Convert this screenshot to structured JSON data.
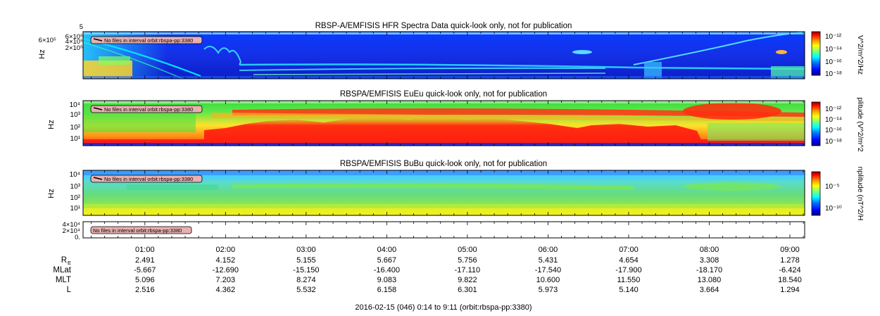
{
  "colors": {
    "spectrum": [
      "#00007f",
      "#0000ff",
      "#007fff",
      "#00ffff",
      "#7fff7f",
      "#ffff00",
      "#ff7f00",
      "#ff0000",
      "#7f0000"
    ],
    "warning_box": "#e8b0b0"
  },
  "panels": [
    {
      "title": "RBSP-A/EMFISIS  HFR Spectra Data quick-look only, not for publication",
      "ylabel": "Hz",
      "yticks": [
        "6×10⁵",
        "4×10⁵",
        "2×10⁵"
      ],
      "top_tick": "5",
      "warning": "No files in interval orbit:rbspa-pp:3380",
      "colorbar_label": "V^2/m^2/Hz",
      "colorbar_ticks": [
        "10⁻¹²",
        "10⁻¹⁴",
        "10⁻¹⁶",
        "10⁻¹⁸"
      ]
    },
    {
      "title": "RBSPA/EMFISIS  EuEu quick-look only, not for publication",
      "ylabel": "Hz",
      "yticks": [
        "10⁴",
        "10³",
        "10²",
        "10¹"
      ],
      "warning": "No files in interval orbit:rbspa-pp:3380",
      "colorbar_label": "plitude (V^2/m^2",
      "colorbar_ticks": [
        "10⁻¹²",
        "10⁻¹⁴",
        "10⁻¹⁶",
        "10⁻¹⁸"
      ]
    },
    {
      "title": "RBSPA/EMFISIS  BuBu quick-look only, not for publication",
      "ylabel": "Hz",
      "yticks": [
        "10⁴",
        "10³",
        "10²",
        "10¹"
      ],
      "warning": "No files in interval orbit:rbspa-pp:3380",
      "colorbar_label": "nplitude (nT^2/H",
      "colorbar_ticks": [
        "10⁻⁵",
        "10⁻¹⁰"
      ]
    },
    {
      "yticks": [
        "4×10⁴",
        "2×10⁴",
        "0."
      ],
      "warning": "No files in interval orbit:rbspa-pp:3380"
    }
  ],
  "chart_data": {
    "type": "heatmap",
    "time_range": [
      "0:14",
      "9:11"
    ],
    "x_hours": [
      1,
      2,
      3,
      4,
      5,
      6,
      7,
      8,
      9
    ],
    "x_tick_labels": [
      "01:00",
      "02:00",
      "03:00",
      "04:00",
      "05:00",
      "06:00",
      "07:00",
      "08:00",
      "09:00"
    ],
    "ephemeris": [
      {
        "label": "R",
        "sub": "E",
        "values": [
          "2.491",
          "4.152",
          "5.155",
          "5.667",
          "5.756",
          "5.431",
          "4.654",
          "3.308",
          "1.278"
        ]
      },
      {
        "label": "MLat",
        "values": [
          "-5.667",
          "-12.690",
          "-15.150",
          "-16.400",
          "-17.110",
          "-17.540",
          "-17.900",
          "-18.170",
          "-6.424"
        ]
      },
      {
        "label": "MLT",
        "values": [
          "5.096",
          "7.203",
          "8.274",
          "9.083",
          "9.822",
          "10.600",
          "11.550",
          "13.080",
          "18.540"
        ]
      },
      {
        "label": "L",
        "values": [
          "2.516",
          "4.362",
          "5.532",
          "6.158",
          "6.301",
          "5.973",
          "5.140",
          "3.664",
          "1.294"
        ]
      }
    ],
    "footer": "2016-02-15 (046) 0:14 to 9:11 (orbit:rbspa-pp:3380)"
  }
}
